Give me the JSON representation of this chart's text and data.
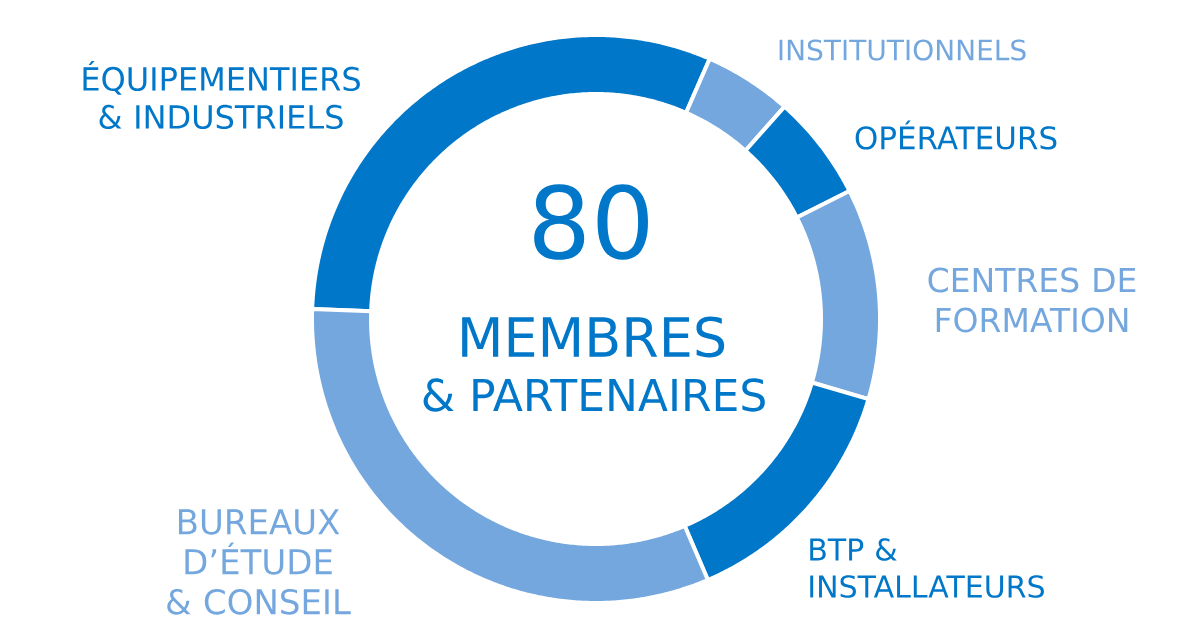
{
  "chart_data": {
    "type": "donut",
    "categories": [
      "ÉQUIPEMENTIERS & INDUSTRIELS",
      "INSTITUTIONNELS",
      "OPÉRATEURS",
      "CENTRES DE FORMATION",
      "BTP & INSTALLATEURS",
      "BUREAUX D’ÉTUDE & CONSEIL"
    ],
    "values": [
      31,
      5,
      6,
      12,
      14,
      32
    ],
    "colors": [
      "#0077c8",
      "#74a7de",
      "#0077c8",
      "#74a7de",
      "#0077c8",
      "#74a7de"
    ],
    "annotations": [
      "80",
      "MEMBRES",
      "& PARTENAIRES"
    ]
  }
}
